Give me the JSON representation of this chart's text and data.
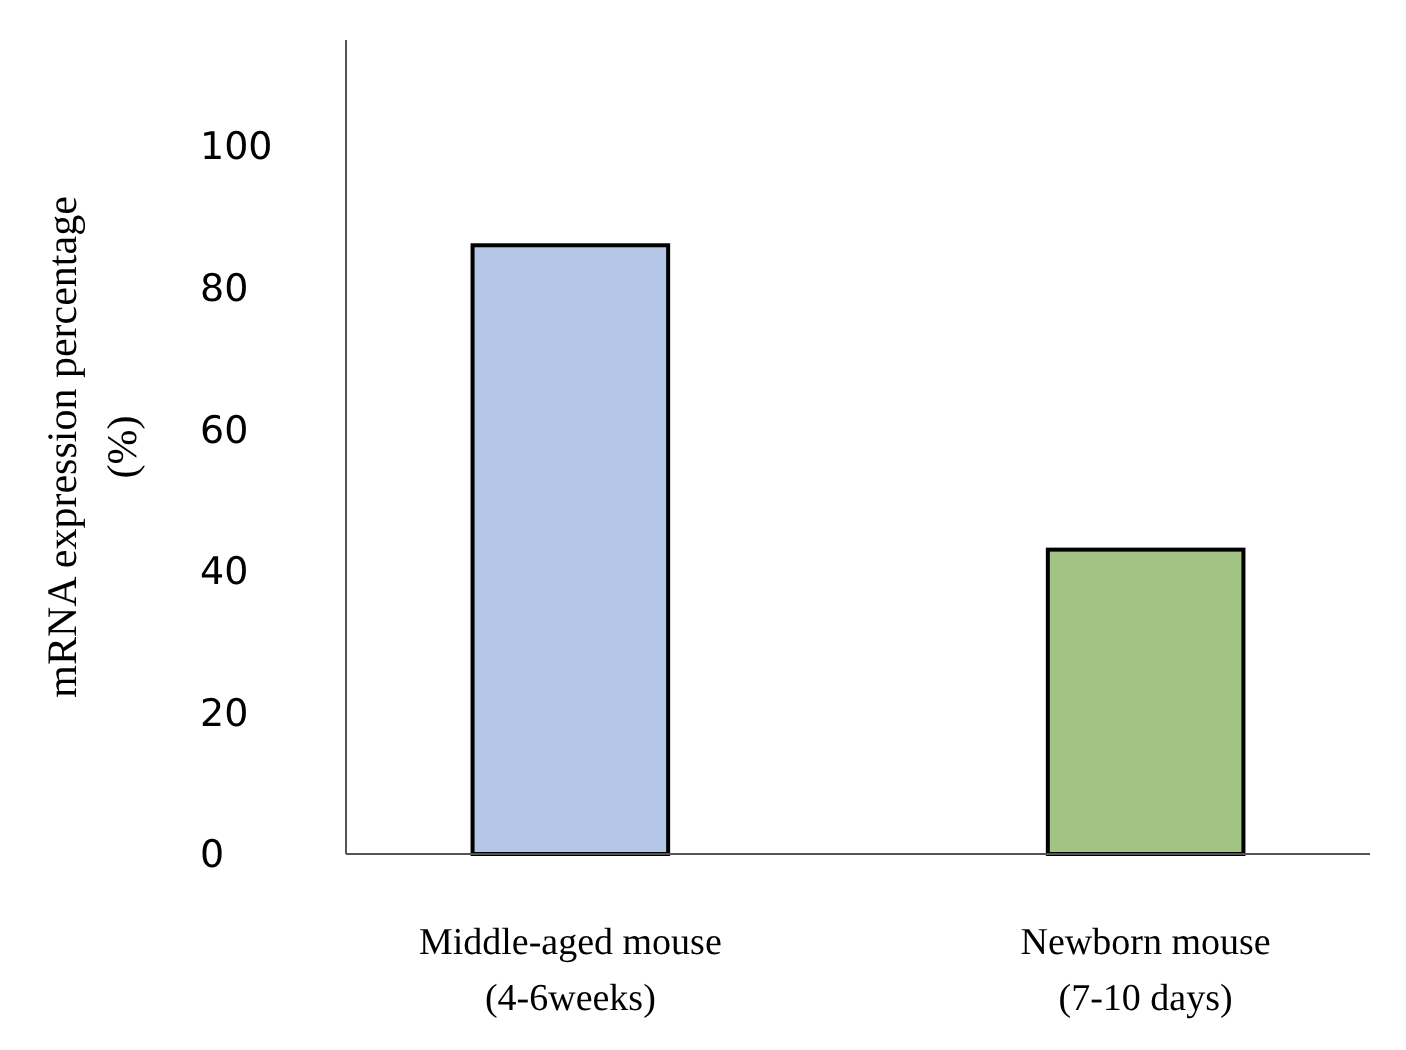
{
  "chart_data": {
    "type": "bar",
    "ylabel": "mRNA expression percentage\n(%)",
    "categories": [
      "Middle-aged mouse\n(4-6weeks)",
      "Newborn mouse\n(7-10 days)"
    ],
    "values": [
      86,
      43
    ],
    "colors": [
      "#b4c7e7",
      "#a1c383"
    ],
    "ylim": [
      0,
      115
    ],
    "yticks": [
      0,
      20,
      40,
      60,
      80,
      100
    ],
    "grid": false
  }
}
